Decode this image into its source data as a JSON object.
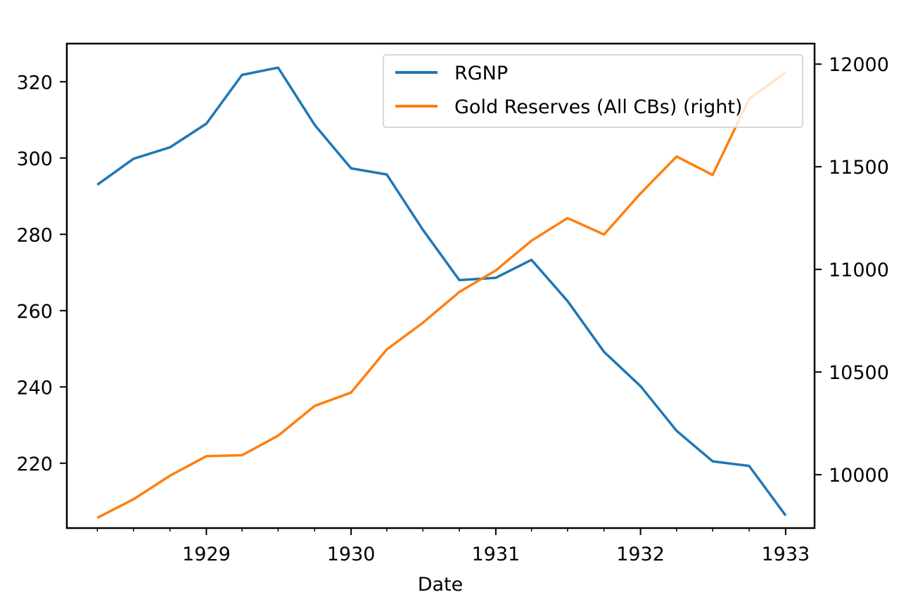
{
  "chart_data": {
    "type": "line",
    "title": "",
    "xlabel": "Date",
    "ylabel": "",
    "ylabel_right": "",
    "x": [
      "1928-04-01",
      "1928-07-01",
      "1928-10-01",
      "1929-01-01",
      "1929-04-01",
      "1929-07-01",
      "1929-10-01",
      "1930-01-01",
      "1930-04-01",
      "1930-07-01",
      "1930-10-01",
      "1931-01-01",
      "1931-04-01",
      "1931-07-01",
      "1931-10-01",
      "1932-01-01",
      "1932-04-01",
      "1932-07-01",
      "1932-10-01",
      "1933-01-01"
    ],
    "xlim": [
      "1928-01-15",
      "1933-03-15"
    ],
    "xticks_major": [
      "1929",
      "1930",
      "1931",
      "1932",
      "1933"
    ],
    "x_minor_ticks": "quarterly",
    "ylim_left": [
      203,
      330
    ],
    "ylim_right": [
      9740,
      12100
    ],
    "yticks_left": [
      220,
      240,
      260,
      280,
      300,
      320
    ],
    "yticks_right": [
      10000,
      10500,
      11000,
      11500,
      12000
    ],
    "series": [
      {
        "name": "RGNP",
        "axis": "left",
        "color": "#1f77b4",
        "values": [
          293.0,
          299.8,
          302.8,
          309.0,
          321.8,
          323.7,
          308.7,
          297.3,
          295.7,
          281.2,
          268.0,
          268.6,
          273.3,
          262.5,
          249.2,
          240.2,
          228.5,
          220.5,
          219.3,
          206.3
        ]
      },
      {
        "name": "Gold Reserves (All CBs) (right)",
        "axis": "right",
        "color": "#ff7f0e",
        "values": [
          9790,
          9880,
          9995,
          10090,
          10095,
          10190,
          10335,
          10400,
          10610,
          10740,
          10890,
          10995,
          11140,
          11250,
          11170,
          11370,
          11550,
          11460,
          11830,
          11960
        ]
      }
    ],
    "legend": {
      "placement": "top-right"
    },
    "grid": false
  }
}
